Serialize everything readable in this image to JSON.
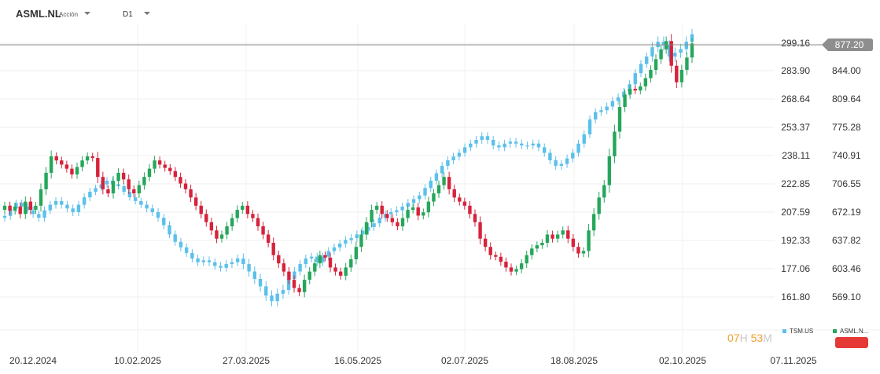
{
  "header": {
    "symbol": "ASML.NL",
    "asset_type": "Acción",
    "timeframe": "D1"
  },
  "chart_data": {
    "type": "candlestick",
    "x_axis": {
      "tick_labels": [
        "20.12.2024",
        "10.02.2025",
        "27.03.2025",
        "16.05.2025",
        "02.07.2025",
        "18.08.2025",
        "02.10.2025",
        "07.11.2025"
      ]
    },
    "y_axis_left": {
      "tick_labels": [
        "299.16",
        "283.90",
        "268.64",
        "253.37",
        "238.11",
        "222.85",
        "207.59",
        "192.33",
        "177.06",
        "161.80"
      ],
      "range": [
        149.0,
        305.0
      ]
    },
    "y_axis_right": {
      "tick_labels": [
        "844.00",
        "809.64",
        "775.28",
        "740.91",
        "706.55",
        "672.19",
        "637.82",
        "603.46",
        "569.10"
      ],
      "range": [
        540.0,
        895.0
      ]
    },
    "current_price": "877.20",
    "series": [
      {
        "name": "TSM.US",
        "color": "#5bc0eb",
        "axis": "left",
        "closes": [
          206,
          210,
          213,
          211,
          209,
          207,
          205,
          209,
          212,
          214,
          212,
          210,
          208,
          212,
          216,
          219,
          221,
          223,
          225,
          223,
          222,
          219,
          216,
          214,
          212,
          210,
          208,
          205,
          201,
          196,
          192,
          189,
          186,
          183,
          181,
          182,
          181,
          179,
          178,
          180,
          181,
          183,
          180,
          176,
          172,
          168,
          163,
          160,
          164,
          166,
          172,
          176,
          180,
          183,
          184,
          181,
          184,
          187,
          189,
          191,
          193,
          194,
          196,
          198,
          200,
          202,
          205,
          207,
          208,
          209,
          211,
          213,
          215,
          217,
          221,
          225,
          229,
          233,
          236,
          238,
          240,
          243,
          245,
          247,
          249,
          247,
          244,
          243,
          245,
          246,
          245,
          244,
          244,
          245,
          243,
          240,
          236,
          233,
          234,
          237,
          240,
          245,
          250,
          258,
          262,
          263,
          265,
          268,
          270,
          273,
          277,
          283,
          288,
          292,
          297,
          300,
          298,
          292,
          294,
          296,
          300,
          304
        ],
        "volatility": [
          3,
          3,
          2.5,
          2.5,
          2.5,
          3,
          3,
          3,
          3,
          3,
          3,
          3,
          3,
          3,
          3,
          3,
          2.5,
          2.5,
          2.5,
          2.5,
          2.5,
          2.5,
          2.5,
          2.5,
          2.5,
          3,
          3,
          3,
          3,
          3,
          3,
          3,
          3,
          3,
          3,
          3,
          3,
          3,
          3,
          3,
          3,
          3,
          4,
          4,
          4,
          4,
          4,
          4,
          4,
          4,
          3.5,
          3.5,
          3,
          3,
          3,
          3,
          3,
          3,
          3,
          3,
          3,
          3,
          3,
          3,
          3,
          3,
          3,
          3,
          3,
          3,
          3,
          3,
          3,
          3,
          3,
          3,
          3,
          3,
          3,
          3,
          3,
          3,
          3,
          3,
          3,
          3,
          3,
          3,
          3,
          3,
          3,
          3,
          3,
          3,
          3,
          3,
          3,
          3,
          3,
          3,
          3,
          3,
          3,
          3,
          3,
          3,
          3,
          3,
          3,
          3,
          3,
          3,
          3,
          3,
          4,
          4,
          4,
          4,
          4,
          4,
          4,
          4
        ]
      },
      {
        "name": "ASML.NL",
        "color_up": "#26a65b",
        "color_down": "#d6223b",
        "axis": "right",
        "closes": [
          680,
          674,
          679,
          670,
          685,
          675,
          680,
          700,
          720,
          740,
          735,
          730,
          725,
          718,
          727,
          735,
          740,
          738,
          715,
          700,
          695,
          710,
          720,
          712,
          700,
          695,
          705,
          715,
          725,
          735,
          730,
          726,
          722,
          715,
          707,
          700,
          690,
          680,
          670,
          660,
          650,
          640,
          645,
          655,
          665,
          675,
          680,
          670,
          665,
          655,
          645,
          635,
          620,
          610,
          600,
          590,
          580,
          575,
          590,
          600,
          610,
          620,
          617,
          605,
          600,
          595,
          605,
          615,
          630,
          645,
          660,
          675,
          680,
          670,
          665,
          660,
          655,
          665,
          675,
          678,
          668,
          672,
          685,
          695,
          705,
          715,
          700,
          690,
          685,
          680,
          670,
          660,
          640,
          630,
          620,
          618,
          612,
          605,
          600,
          603,
          610,
          620,
          628,
          632,
          635,
          645,
          640,
          645,
          650,
          640,
          630,
          622,
          625,
          650,
          670,
          690,
          705,
          740,
          770,
          800,
          815,
          822,
          820,
          825,
          835,
          845,
          858,
          870,
          880,
          850,
          830,
          845,
          860,
          877
        ]
      }
    ],
    "legend": [
      "TSM.US",
      "ASML.N..."
    ]
  },
  "countdown": {
    "hours": "07",
    "hours_unit": "H",
    "minutes": "53",
    "minutes_unit": "M"
  },
  "colors": {
    "up": "#26a65b",
    "down": "#d6223b",
    "tsm": "#5bc0eb",
    "grid": "#eeeeee",
    "price_tag_bg": "#8e8e8e",
    "accent_red": "#e53935"
  }
}
